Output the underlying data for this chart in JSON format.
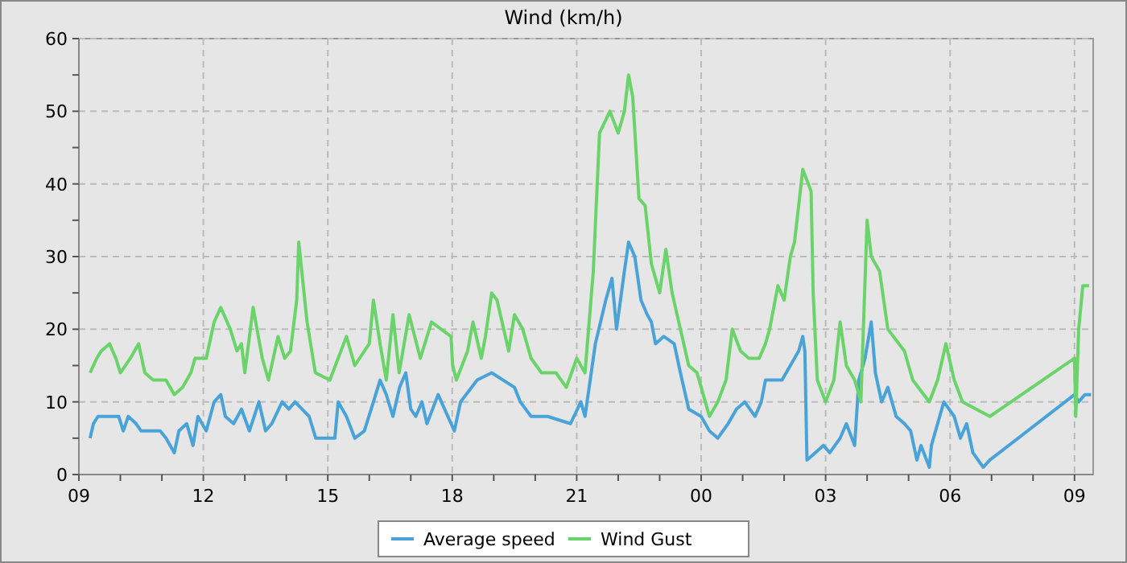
{
  "chart_data": {
    "type": "line",
    "title": "Wind (km/h)",
    "xlim": [
      9,
      33.45
    ],
    "xticks": [
      {
        "value": 9,
        "label": "09"
      },
      {
        "value": 10,
        "label": null
      },
      {
        "value": 11,
        "label": null
      },
      {
        "value": 12,
        "label": "12"
      },
      {
        "value": 13,
        "label": null
      },
      {
        "value": 14,
        "label": null
      },
      {
        "value": 15,
        "label": "15"
      },
      {
        "value": 16,
        "label": null
      },
      {
        "value": 17,
        "label": null
      },
      {
        "value": 18,
        "label": "18"
      },
      {
        "value": 19,
        "label": null
      },
      {
        "value": 20,
        "label": null
      },
      {
        "value": 21,
        "label": "21"
      },
      {
        "value": 22,
        "label": null
      },
      {
        "value": 23,
        "label": null
      },
      {
        "value": 24,
        "label": "00"
      },
      {
        "value": 25,
        "label": null
      },
      {
        "value": 26,
        "label": null
      },
      {
        "value": 27,
        "label": "03"
      },
      {
        "value": 28,
        "label": null
      },
      {
        "value": 29,
        "label": null
      },
      {
        "value": 30,
        "label": "06"
      },
      {
        "value": 31,
        "label": null
      },
      {
        "value": 32,
        "label": null
      },
      {
        "value": 33,
        "label": "09"
      }
    ],
    "ylim": [
      0,
      60
    ],
    "yticks": [
      0,
      {
        "value": 5,
        "label": null
      },
      10,
      {
        "value": 15,
        "label": null
      },
      20,
      {
        "value": 25,
        "label": null
      },
      30,
      {
        "value": 35,
        "label": null
      },
      40,
      {
        "value": 45,
        "label": null
      },
      50,
      {
        "value": 55,
        "label": null
      },
      60
    ],
    "grid": true,
    "legend": "bottom",
    "marker": "none",
    "line_style": "solid",
    "series": [
      {
        "name": "Average speed",
        "color": "#4aa3d8",
        "x": [
          9.27,
          9.35,
          9.46,
          9.96,
          10.07,
          10.19,
          10.38,
          10.5,
          10.96,
          11.1,
          11.3,
          11.41,
          11.6,
          11.75,
          11.87,
          12.07,
          12.26,
          12.42,
          12.53,
          12.73,
          12.92,
          13.11,
          13.34,
          13.5,
          13.65,
          13.9,
          14.06,
          14.21,
          14.55,
          14.71,
          15.17,
          15.25,
          15.45,
          15.65,
          15.88,
          16.1,
          16.26,
          16.41,
          16.57,
          16.73,
          16.88,
          17.0,
          17.12,
          17.27,
          17.39,
          17.66,
          18.05,
          18.2,
          18.6,
          18.95,
          19.5,
          19.64,
          19.9,
          20.3,
          20.85,
          21.1,
          21.2,
          21.45,
          21.7,
          21.85,
          21.96,
          22.15,
          22.25,
          22.4,
          22.55,
          22.7,
          22.8,
          22.9,
          23.1,
          23.35,
          23.5,
          23.7,
          24.0,
          24.2,
          24.4,
          24.65,
          24.85,
          25.05,
          25.3,
          25.45,
          25.55,
          25.95,
          26.15,
          26.35,
          26.45,
          26.5,
          26.55,
          26.75,
          26.95,
          27.1,
          27.35,
          27.5,
          27.7,
          27.8,
          27.95,
          28.1,
          28.2,
          28.35,
          28.5,
          28.7,
          28.9,
          29.05,
          29.2,
          29.3,
          29.5,
          29.55,
          29.7,
          29.85,
          30.1,
          30.25,
          30.4,
          30.55,
          30.8,
          30.96,
          33.0,
          33.1,
          33.25,
          33.4
        ],
        "values": [
          5,
          7,
          8,
          8,
          6,
          8,
          7,
          6,
          6,
          5,
          3,
          6,
          7,
          4,
          8,
          6,
          10,
          11,
          8,
          7,
          9,
          6,
          10,
          6,
          7,
          10,
          9,
          10,
          8,
          5,
          5,
          10,
          8,
          5,
          6,
          10,
          13,
          11,
          8,
          12,
          14,
          9,
          8,
          10,
          7,
          11,
          6,
          10,
          13,
          14,
          12,
          10,
          8,
          8,
          7,
          10,
          8,
          18,
          24,
          27,
          20,
          28,
          32,
          30,
          24,
          22,
          21,
          18,
          19,
          18,
          14,
          9,
          8,
          6,
          5,
          7,
          9,
          10,
          8,
          10,
          13,
          13,
          15,
          17,
          19,
          17,
          2,
          3,
          4,
          3,
          5,
          7,
          4,
          13,
          16,
          21,
          14,
          10,
          12,
          8,
          7,
          6,
          2,
          4,
          1,
          4,
          7,
          10,
          8,
          5,
          7,
          3,
          1,
          2,
          11,
          10,
          11,
          11
        ]
      },
      {
        "name": "Wind Gust",
        "color": "#6ad46a",
        "x": [
          9.27,
          9.43,
          9.54,
          9.74,
          9.89,
          10.0,
          10.24,
          10.44,
          10.59,
          10.79,
          11.1,
          11.3,
          11.5,
          11.7,
          11.8,
          12.07,
          12.26,
          12.42,
          12.65,
          12.81,
          12.92,
          13.0,
          13.2,
          13.42,
          13.57,
          13.8,
          13.96,
          14.1,
          14.25,
          14.3,
          14.5,
          14.7,
          15.05,
          15.45,
          15.65,
          16.0,
          16.1,
          16.26,
          16.41,
          16.57,
          16.72,
          16.96,
          17.23,
          17.5,
          17.97,
          18.01,
          18.1,
          18.37,
          18.5,
          18.7,
          18.8,
          18.95,
          19.08,
          19.2,
          19.36,
          19.5,
          19.7,
          19.9,
          20.15,
          20.5,
          20.75,
          21.0,
          21.2,
          21.4,
          21.55,
          21.8,
          22.0,
          22.15,
          22.25,
          22.35,
          22.5,
          22.65,
          22.8,
          23.0,
          23.15,
          23.3,
          23.5,
          23.7,
          23.9,
          24.05,
          24.2,
          24.4,
          24.6,
          24.75,
          24.95,
          25.15,
          25.4,
          25.55,
          25.65,
          25.85,
          26.0,
          26.15,
          26.25,
          26.45,
          26.65,
          26.7,
          26.8,
          27.0,
          27.2,
          27.35,
          27.5,
          27.7,
          27.85,
          28.0,
          28.1,
          28.3,
          28.5,
          28.9,
          29.1,
          29.5,
          29.7,
          29.9,
          30.1,
          30.3,
          30.96,
          33.0,
          33.03,
          33.1,
          33.2,
          33.35
        ],
        "values": [
          14,
          16,
          17,
          18,
          16,
          14,
          16,
          18,
          14,
          13,
          13,
          11,
          12,
          14,
          16,
          16,
          21,
          23,
          20,
          17,
          18,
          14,
          23,
          16,
          13,
          19,
          16,
          17,
          24,
          32,
          21,
          14,
          13,
          19,
          15,
          18,
          24,
          18,
          13,
          22,
          14,
          22,
          16,
          21,
          19,
          15,
          13,
          17,
          21,
          16,
          19,
          25,
          24,
          21,
          17,
          22,
          20,
          16,
          14,
          14,
          12,
          16,
          14,
          28,
          47,
          50,
          47,
          50,
          55,
          52,
          38,
          37,
          29,
          25,
          31,
          25,
          20,
          15,
          14,
          11,
          8,
          10,
          13,
          20,
          17,
          16,
          16,
          18,
          20,
          26,
          24,
          30,
          32,
          42,
          39,
          25,
          13,
          10,
          13,
          21,
          15,
          13,
          10,
          35,
          30,
          28,
          20,
          17,
          13,
          10,
          13,
          18,
          13,
          10,
          8,
          16,
          8,
          20,
          26,
          26
        ]
      }
    ]
  }
}
